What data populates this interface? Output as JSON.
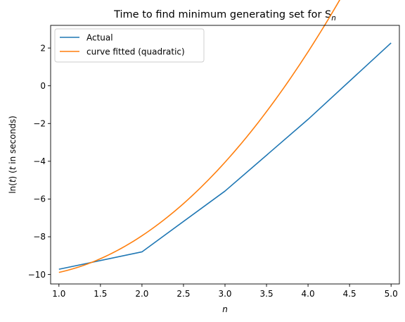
{
  "chart_data": {
    "type": "line",
    "title": "Time to find minimum generating set for S",
    "title_subscript": "n",
    "xlabel": "n",
    "ylabel_prefix": "ln(",
    "ylabel_var": "t",
    "ylabel_mid": ") (",
    "ylabel_var2": "t",
    "ylabel_suffix": " in seconds)",
    "xlim": [
      0.9,
      5.1
    ],
    "ylim": [
      -10.5,
      3.2
    ],
    "xticks": [
      1.0,
      1.5,
      2.0,
      2.5,
      3.0,
      3.5,
      4.0,
      4.5,
      5.0
    ],
    "xtick_labels": [
      "1.0",
      "1.5",
      "2.0",
      "2.5",
      "3.0",
      "3.5",
      "4.0",
      "4.5",
      "5.0"
    ],
    "yticks": [
      -10,
      -8,
      -6,
      -4,
      -2,
      0,
      2
    ],
    "ytick_labels": [
      "−10",
      "−8",
      "−6",
      "−4",
      "−2",
      "0",
      "2"
    ],
    "grid": false,
    "legend_position": "top-left",
    "series": [
      {
        "name": "Actual",
        "color": "#1f77b4",
        "x": [
          1,
          2,
          3,
          4,
          5
        ],
        "y": [
          -9.72,
          -8.8,
          -5.58,
          -1.78,
          2.27
        ]
      },
      {
        "name": "curve fitted (quadratic)",
        "color": "#ff7f0e",
        "quadratic": {
          "a": 0.9771,
          "b": -0.9897,
          "c": -9.8754
        },
        "x_range": [
          1,
          5
        ]
      }
    ]
  }
}
